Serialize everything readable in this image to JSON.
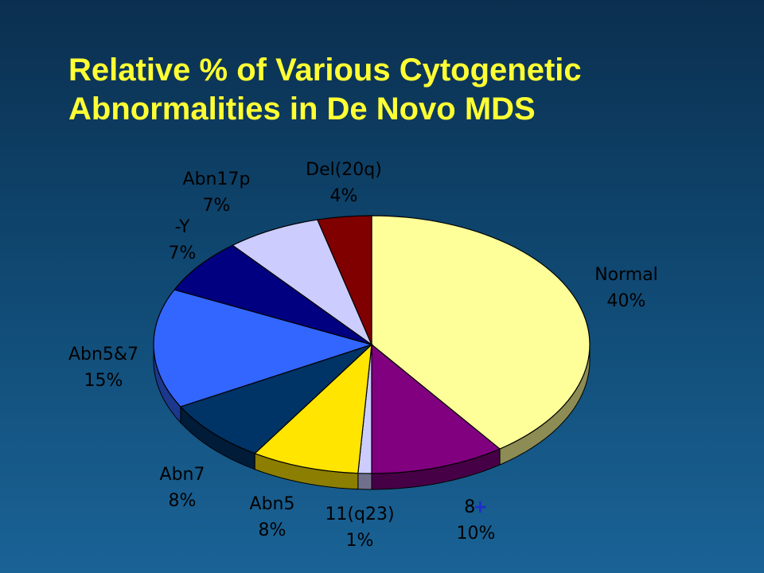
{
  "title_lines": [
    "Relative % of Various Cytogenetic",
    "Abnormalities in De Novo MDS"
  ],
  "chart_data": {
    "type": "pie",
    "title": "Relative % of Various Cytogenetic Abnormalities in De Novo MDS",
    "start_angle_deg": 0,
    "direction": "clockwise",
    "slices": [
      {
        "name": "Normal",
        "label": "Normal",
        "value": 40,
        "value_label": "40%",
        "color": "#ffff99"
      },
      {
        "name": "+8",
        "label": "8",
        "label_suffix": "+",
        "value": 10,
        "value_label": "10%",
        "color": "#800080"
      },
      {
        "name": "11(q23)",
        "label": "11(q23)",
        "value": 1,
        "value_label": "1%",
        "color": "#ccccff"
      },
      {
        "name": "Abn5",
        "label": "Abn5",
        "value": 8,
        "value_label": "8%",
        "color": "#ffe500"
      },
      {
        "name": "Abn7",
        "label": "Abn7",
        "value": 8,
        "value_label": "8%",
        "color": "#003366"
      },
      {
        "name": "Abn5&7",
        "label": "Abn5&7",
        "value": 15,
        "value_label": "15%",
        "color": "#3366ff"
      },
      {
        "name": "-Y",
        "label": "-Y",
        "value": 7,
        "value_label": "7%",
        "color": "#000080"
      },
      {
        "name": "Abn17p",
        "label": "Abn17p",
        "value": 7,
        "value_label": "7%",
        "color": "#ccccff"
      },
      {
        "name": "Del(20q)",
        "label": "Del(20q)",
        "value": 4,
        "value_label": "4%",
        "color": "#800000"
      }
    ]
  }
}
